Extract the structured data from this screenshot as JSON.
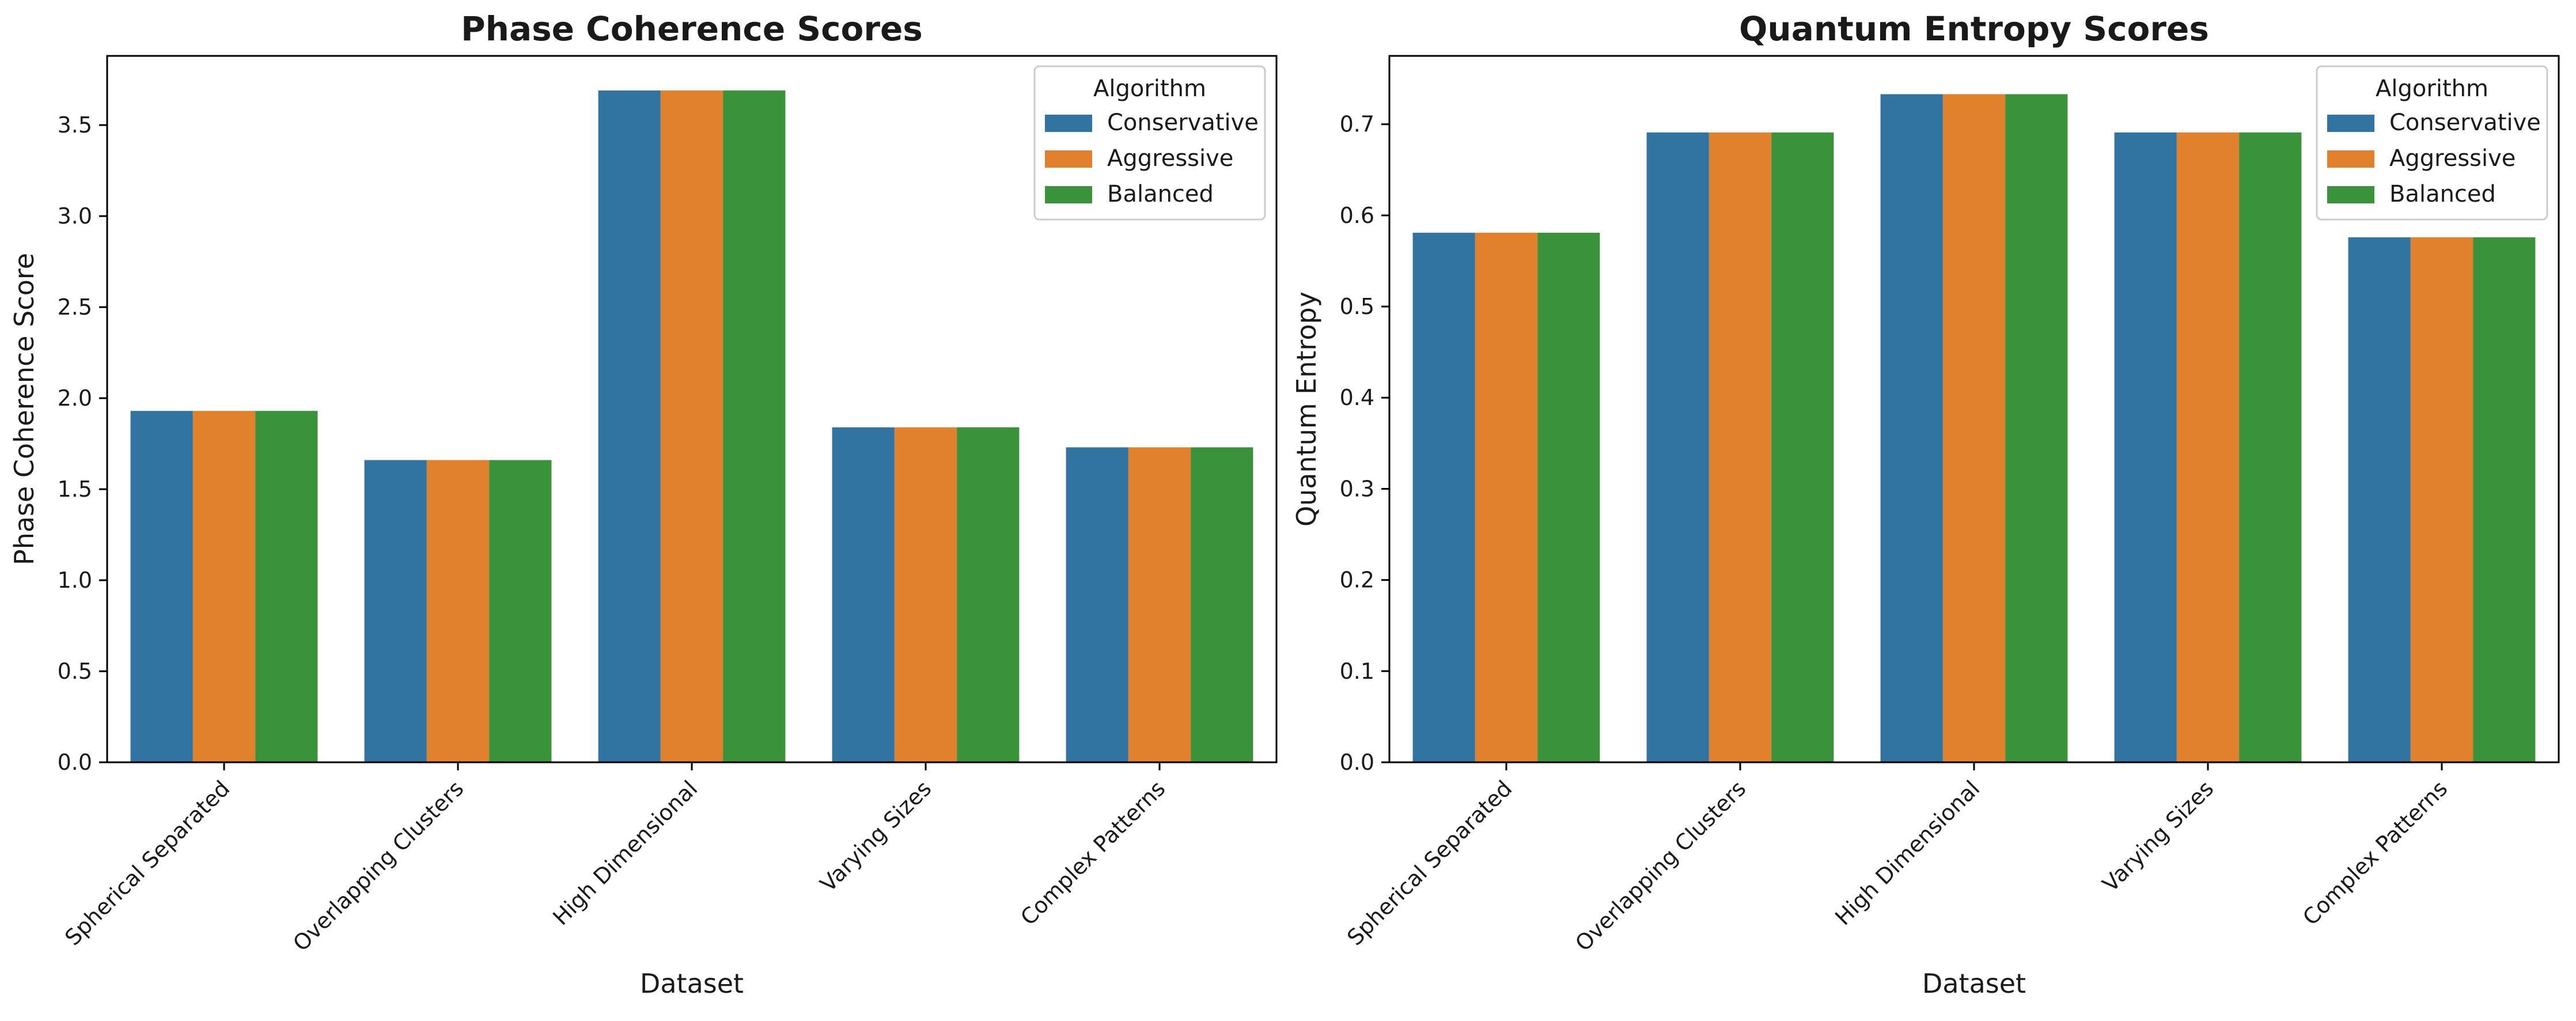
{
  "chart_data": [
    {
      "type": "bar",
      "title": "Phase Coherence Scores",
      "xlabel": "Dataset",
      "ylabel": "Phase Coherence Score",
      "ylim": [
        0,
        3.88
      ],
      "yticks": [
        "0.0",
        "0.5",
        "1.0",
        "1.5",
        "2.0",
        "2.5",
        "3.0",
        "3.5"
      ],
      "categories": [
        "Spherical Separated",
        "Overlapping Clusters",
        "High Dimensional",
        "Varying Sizes",
        "Complex Patterns"
      ],
      "series": [
        {
          "name": "Conservative",
          "color": "#3274a1",
          "values": [
            1.93,
            1.66,
            3.69,
            1.84,
            1.73
          ]
        },
        {
          "name": "Aggressive",
          "color": "#e1812c",
          "values": [
            1.93,
            1.66,
            3.69,
            1.84,
            1.73
          ]
        },
        {
          "name": "Balanced",
          "color": "#3a923a",
          "values": [
            1.93,
            1.66,
            3.69,
            1.84,
            1.73
          ]
        }
      ],
      "legend_title": "Algorithm",
      "legend_position": "top-right",
      "grid": false
    },
    {
      "type": "bar",
      "title": "Quantum Entropy Scores",
      "xlabel": "Dataset",
      "ylabel": "Quantum Entropy",
      "ylim": [
        0,
        0.775
      ],
      "yticks": [
        "0.0",
        "0.1",
        "0.2",
        "0.3",
        "0.4",
        "0.5",
        "0.6",
        "0.7"
      ],
      "categories": [
        "Spherical Separated",
        "Overlapping Clusters",
        "High Dimensional",
        "Varying Sizes",
        "Complex Patterns"
      ],
      "series": [
        {
          "name": "Conservative",
          "color": "#3274a1",
          "values": [
            0.581,
            0.691,
            0.733,
            0.691,
            0.576
          ]
        },
        {
          "name": "Aggressive",
          "color": "#e1812c",
          "values": [
            0.581,
            0.691,
            0.733,
            0.691,
            0.576
          ]
        },
        {
          "name": "Balanced",
          "color": "#3a923a",
          "values": [
            0.581,
            0.691,
            0.733,
            0.691,
            0.576
          ]
        }
      ],
      "legend_title": "Algorithm",
      "legend_position": "top-right",
      "grid": false
    }
  ]
}
